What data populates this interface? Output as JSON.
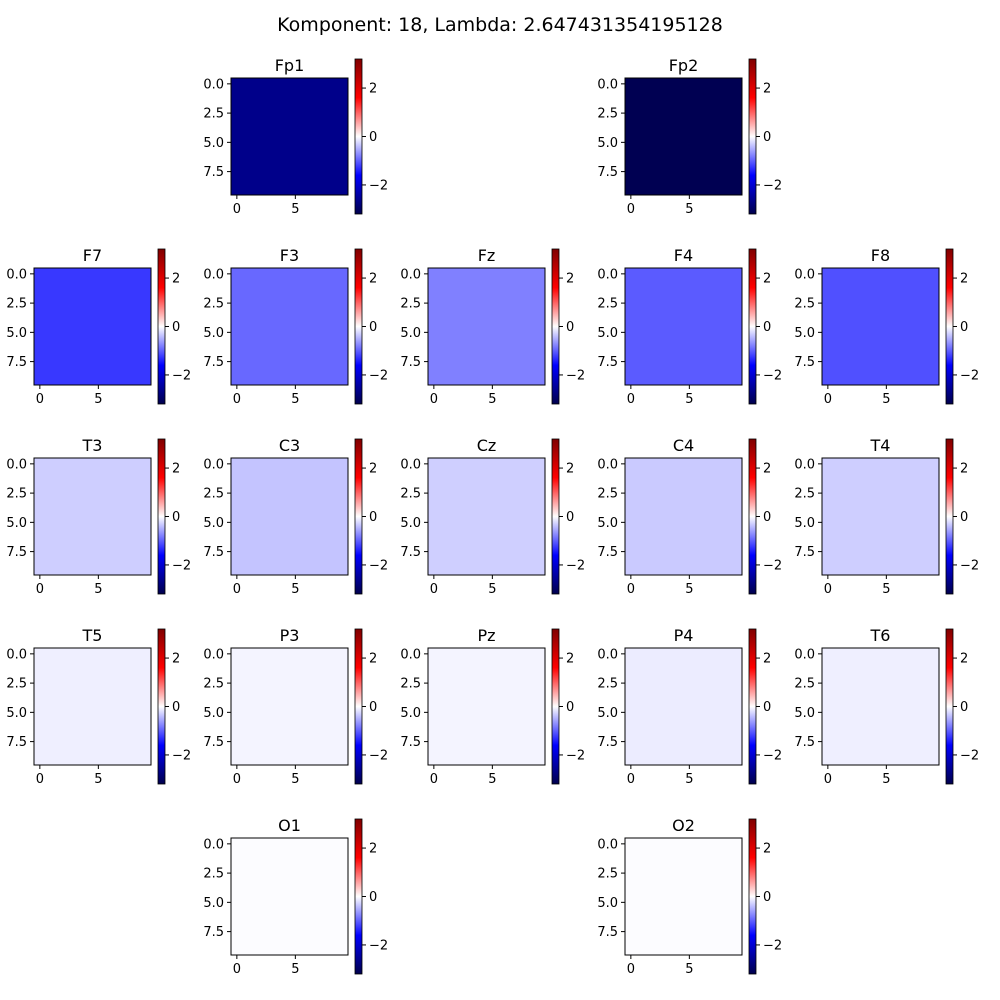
{
  "figure": {
    "suptitle": "Komponent: 18, Lambda: 2.647431354195128"
  },
  "chart_data": {
    "type": "heatmap",
    "title": "Komponent: 18, Lambda: 2.647431354195128",
    "colormap": "seismic",
    "color_range": [
      -3.2,
      3.2
    ],
    "colorbar_ticks": [
      "2",
      "0",
      "−2"
    ],
    "x_ticks": [
      "0",
      "5"
    ],
    "y_ticks": [
      "0.0",
      "2.5",
      "5.0",
      "7.5"
    ],
    "panels": [
      {
        "label": "Fp1",
        "row": 0,
        "col": 1,
        "value": -2.65
      },
      {
        "label": "Fp2",
        "row": 0,
        "col": 3,
        "value": -3.15
      },
      {
        "label": "F7",
        "row": 1,
        "col": 0,
        "value": -1.25
      },
      {
        "label": "F3",
        "row": 1,
        "col": 1,
        "value": -0.95
      },
      {
        "label": "Fz",
        "row": 1,
        "col": 2,
        "value": -0.8
      },
      {
        "label": "F4",
        "row": 1,
        "col": 3,
        "value": -1.03
      },
      {
        "label": "F8",
        "row": 1,
        "col": 4,
        "value": -1.1
      },
      {
        "label": "T3",
        "row": 2,
        "col": 0,
        "value": -0.31
      },
      {
        "label": "C3",
        "row": 2,
        "col": 1,
        "value": -0.37
      },
      {
        "label": "Cz",
        "row": 2,
        "col": 2,
        "value": -0.3
      },
      {
        "label": "C4",
        "row": 2,
        "col": 3,
        "value": -0.33
      },
      {
        "label": "T4",
        "row": 2,
        "col": 4,
        "value": -0.31
      },
      {
        "label": "T5",
        "row": 3,
        "col": 0,
        "value": -0.1
      },
      {
        "label": "P3",
        "row": 3,
        "col": 1,
        "value": -0.07
      },
      {
        "label": "Pz",
        "row": 3,
        "col": 2,
        "value": -0.07
      },
      {
        "label": "P4",
        "row": 3,
        "col": 3,
        "value": -0.12
      },
      {
        "label": "T6",
        "row": 3,
        "col": 4,
        "value": -0.1
      },
      {
        "label": "O1",
        "row": 4,
        "col": 1,
        "value": -0.02
      },
      {
        "label": "O2",
        "row": 4,
        "col": 3,
        "value": -0.02
      }
    ]
  }
}
